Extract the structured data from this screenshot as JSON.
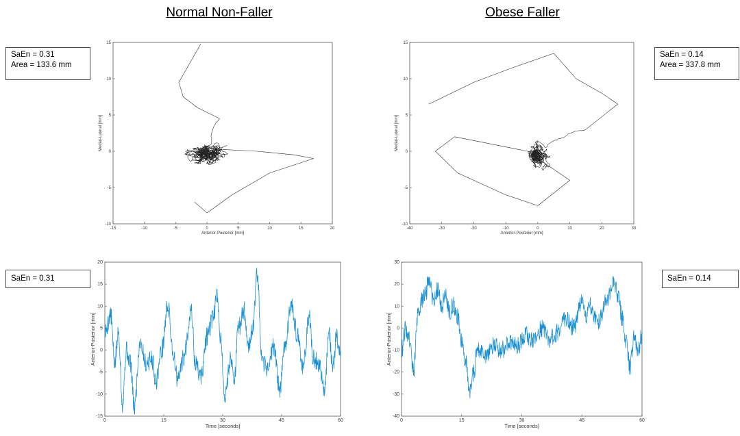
{
  "titles": {
    "left": "Normal Non-Faller",
    "right": "Obese Faller"
  },
  "boxes": {
    "top_left": {
      "line1": "SaEn = 0.31",
      "line2": "Area = 133.6 mm"
    },
    "top_right": {
      "line1": "SaEn = 0.14",
      "line2": "Area = 337.8 mm"
    },
    "bottom_left": {
      "line1": "SaEn = 0.31"
    },
    "bottom_right": {
      "line1": "SaEn = 0.14"
    }
  },
  "colors": {
    "stabilogram": "#222222",
    "timeseries": "#1a8fd1",
    "axis": "#555555"
  },
  "chart_data": [
    {
      "id": "nf_stabilogram",
      "type": "line",
      "xlabel": "Anterior-Posterior [mm]",
      "ylabel": "Medial-Lateral [mm]",
      "xlim": [
        -15,
        20
      ],
      "ylim": [
        -10,
        15
      ],
      "xticks": [
        -15,
        -10,
        -5,
        0,
        5,
        10,
        15,
        20
      ],
      "yticks": [
        -10,
        -5,
        0,
        5,
        10,
        15
      ],
      "trace": {
        "seed": 11,
        "n": 1400,
        "center": [
          0,
          -0.5
        ],
        "spread": [
          7.5,
          3.4
        ],
        "tension": 0.55,
        "path_start": [
          [
            -1,
            14.8
          ],
          [
            -3.5,
            11
          ],
          [
            -4.5,
            9.5
          ],
          [
            -3.8,
            7.5
          ],
          [
            -1.5,
            6
          ],
          [
            2,
            4.5
          ]
        ],
        "path_end": [
          [
            8,
            0
          ],
          [
            14,
            -0.5
          ],
          [
            17,
            -1
          ],
          [
            10,
            -3
          ],
          [
            4,
            -6
          ],
          [
            0,
            -8.5
          ],
          [
            -2,
            -7
          ]
        ]
      }
    },
    {
      "id": "of_stabilogram",
      "type": "line",
      "xlabel": "Anterior-Posterior [mm]",
      "ylabel": "Medial-Lateral [mm]",
      "xlim": [
        -40,
        30
      ],
      "ylim": [
        -10,
        15
      ],
      "xticks": [
        -40,
        -30,
        -20,
        -10,
        0,
        10,
        20,
        30
      ],
      "yticks": [
        -10,
        -5,
        0,
        5,
        10,
        15
      ],
      "trace": {
        "seed": 23,
        "n": 1100,
        "center": [
          0,
          -0.5
        ],
        "spread": [
          12,
          4.2
        ],
        "tension": 0.5,
        "path_start": [
          [
            -34,
            6.5
          ],
          [
            -20,
            9.5
          ],
          [
            -8,
            11.5
          ],
          [
            5,
            13.5
          ],
          [
            12,
            10
          ],
          [
            20,
            8
          ],
          [
            25,
            6.5
          ],
          [
            15,
            3
          ]
        ],
        "path_end": [
          [
            -26,
            2
          ],
          [
            -32,
            0
          ],
          [
            -25,
            -3
          ],
          [
            -10,
            -6
          ],
          [
            0,
            -7.5
          ],
          [
            10,
            -4
          ],
          [
            0,
            -1
          ]
        ]
      }
    },
    {
      "id": "nf_timeseries",
      "type": "line",
      "xlabel": "Time [seconds]",
      "ylabel": "Anterior-Posterior [mm]",
      "xlim": [
        0,
        60
      ],
      "ylim": [
        -15,
        20
      ],
      "xticks": [
        0,
        15,
        30,
        45,
        60
      ],
      "yticks": [
        -15,
        -10,
        -5,
        0,
        5,
        10,
        15,
        20
      ],
      "anchors": [
        [
          0,
          4
        ],
        [
          1.5,
          8
        ],
        [
          2.5,
          -3
        ],
        [
          3.5,
          4
        ],
        [
          4.5,
          -12
        ],
        [
          5.5,
          0
        ],
        [
          6.5,
          -3
        ],
        [
          7.5,
          -13
        ],
        [
          9,
          2
        ],
        [
          10.5,
          -3
        ],
        [
          12,
          -2
        ],
        [
          13,
          -7
        ],
        [
          14.5,
          0
        ],
        [
          16,
          10
        ],
        [
          17.5,
          -1
        ],
        [
          18.5,
          -7
        ],
        [
          20,
          -2
        ],
        [
          22,
          9
        ],
        [
          23,
          -3
        ],
        [
          24.5,
          -6
        ],
        [
          26,
          3
        ],
        [
          27.5,
          7
        ],
        [
          28.5,
          12
        ],
        [
          29.5,
          3
        ],
        [
          30.5,
          -11
        ],
        [
          32,
          -2
        ],
        [
          33,
          -6
        ],
        [
          34,
          5
        ],
        [
          35.5,
          9
        ],
        [
          36.5,
          1
        ],
        [
          37.5,
          4
        ],
        [
          38.8,
          17
        ],
        [
          40,
          -3
        ],
        [
          41.5,
          -4
        ],
        [
          43,
          1
        ],
        [
          44.5,
          -9
        ],
        [
          46,
          2
        ],
        [
          47.5,
          11
        ],
        [
          49,
          3
        ],
        [
          50.5,
          -4
        ],
        [
          52,
          8
        ],
        [
          53,
          -2
        ],
        [
          54.5,
          -3
        ],
        [
          56,
          -9
        ],
        [
          57,
          5
        ],
        [
          58,
          -4
        ],
        [
          59,
          3
        ],
        [
          60,
          0
        ]
      ],
      "noise": 2.2,
      "points": 720,
      "seed": 5
    },
    {
      "id": "of_timeseries",
      "type": "line",
      "xlabel": "Time [seconds]",
      "ylabel": "Anterior-Posterior [mm]",
      "xlim": [
        0,
        60
      ],
      "ylim": [
        -40,
        30
      ],
      "xticks": [
        0,
        15,
        30,
        45,
        60
      ],
      "yticks": [
        -40,
        -30,
        -20,
        -10,
        0,
        10,
        20,
        30
      ],
      "anchors": [
        [
          0,
          -10
        ],
        [
          1,
          0
        ],
        [
          2,
          -5
        ],
        [
          3,
          -20
        ],
        [
          4,
          5
        ],
        [
          5,
          12
        ],
        [
          6,
          16
        ],
        [
          7,
          23
        ],
        [
          8,
          12
        ],
        [
          9,
          18
        ],
        [
          10,
          10
        ],
        [
          11,
          15
        ],
        [
          12,
          8
        ],
        [
          13,
          10
        ],
        [
          14,
          5
        ],
        [
          15,
          -5
        ],
        [
          16,
          -15
        ],
        [
          17,
          -28
        ],
        [
          18,
          -20
        ],
        [
          19,
          -10
        ],
        [
          21,
          -12
        ],
        [
          23,
          -8
        ],
        [
          25,
          -10
        ],
        [
          27,
          -6
        ],
        [
          29,
          -8
        ],
        [
          31,
          -3
        ],
        [
          33,
          -6
        ],
        [
          35,
          0
        ],
        [
          37,
          -5
        ],
        [
          39,
          -2
        ],
        [
          41,
          5
        ],
        [
          43,
          0
        ],
        [
          45,
          13
        ],
        [
          46,
          5
        ],
        [
          47,
          10
        ],
        [
          49,
          2
        ],
        [
          51,
          12
        ],
        [
          53,
          20
        ],
        [
          54,
          15
        ],
        [
          55,
          5
        ],
        [
          56,
          -5
        ],
        [
          57,
          -18
        ],
        [
          58,
          -5
        ],
        [
          59,
          -10
        ],
        [
          60,
          -3
        ]
      ],
      "noise": 4.2,
      "points": 720,
      "seed": 9
    }
  ]
}
